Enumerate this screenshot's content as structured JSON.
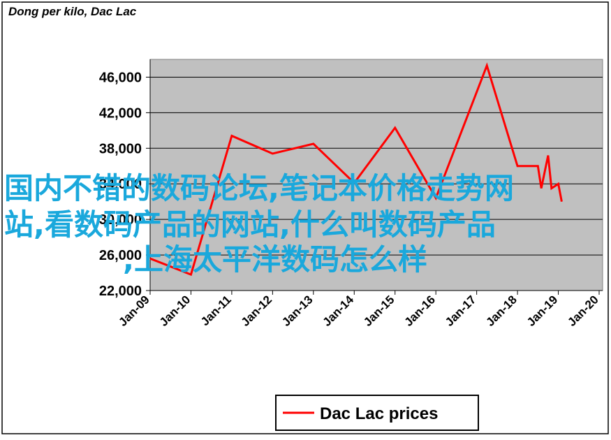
{
  "chart_data": {
    "type": "line",
    "title": "Dong per kilo, Dac Lac",
    "x": [
      "2009-01",
      "2010-01",
      "2011-01",
      "2012-01",
      "2013-01",
      "2014-01",
      "2015-01",
      "2016-01",
      "2017-04",
      "2018-01",
      "2018-07",
      "2018-08",
      "2018-10",
      "2018-11",
      "2019-01",
      "2019-02"
    ],
    "series": [
      {
        "name": "Dac Lac prices",
        "color": "#ff0000",
        "values": [
          25600,
          23800,
          39400,
          37400,
          38500,
          34100,
          40300,
          32400,
          47300,
          36000,
          36000,
          33500,
          37200,
          33500,
          34000,
          32000
        ]
      }
    ],
    "xlim": [
      "2009-01",
      "2020-01"
    ],
    "xticks": [
      {
        "value": "2009-01",
        "label": "Jan-09"
      },
      {
        "value": "2010-01",
        "label": "Jan-10"
      },
      {
        "value": "2011-01",
        "label": "Jan-11"
      },
      {
        "value": "2012-01",
        "label": "Jan-12"
      },
      {
        "value": "2013-01",
        "label": "Jan-13"
      },
      {
        "value": "2014-01",
        "label": "Jan-14"
      },
      {
        "value": "2015-01",
        "label": "Jan-15"
      },
      {
        "value": "2016-01",
        "label": "Jan-16"
      },
      {
        "value": "2017-01",
        "label": "Jan-17"
      },
      {
        "value": "2018-01",
        "label": "Jan-18"
      },
      {
        "value": "2019-01",
        "label": "Jan-19"
      },
      {
        "value": "2020-01",
        "label": "Jan-20"
      }
    ],
    "ylim": [
      22000,
      48000
    ],
    "yticks": [
      {
        "value": 22000,
        "label": "22,000"
      },
      {
        "value": 26000,
        "label": "26,000"
      },
      {
        "value": 30000,
        "label": "30,000"
      },
      {
        "value": 34000,
        "label": "34,000"
      },
      {
        "value": 38000,
        "label": "38,000"
      },
      {
        "value": 42000,
        "label": "42,000"
      },
      {
        "value": 46000,
        "label": "46,000"
      }
    ],
    "grid": true,
    "legend": "bottom",
    "annotations": [
      "国内不错的数码论坛,笔记本价格走势网",
      "站,看数码产品的网站,什么叫数码产品",
      ",上海太平洋数码怎么样"
    ]
  }
}
